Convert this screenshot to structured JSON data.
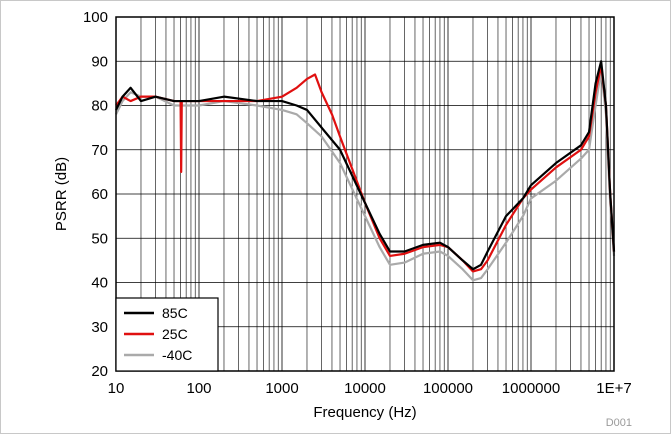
{
  "chart_data": {
    "type": "line",
    "title": "",
    "xlabel": "Frequency (Hz)",
    "ylabel": "PSRR (dB)",
    "x_scale": "log",
    "xlim": [
      10,
      10000000
    ],
    "ylim": [
      20,
      100
    ],
    "x_ticks": [
      {
        "value": 10,
        "label": "10"
      },
      {
        "value": 100,
        "label": "100"
      },
      {
        "value": 1000,
        "label": "1000"
      },
      {
        "value": 10000,
        "label": "10000"
      },
      {
        "value": 100000,
        "label": "100000"
      },
      {
        "value": 1000000,
        "label": "1000000"
      },
      {
        "value": 10000000,
        "label": "1E+7"
      }
    ],
    "y_ticks": [
      20,
      30,
      40,
      50,
      60,
      70,
      80,
      90,
      100
    ],
    "grid": true,
    "legend_position": "bottom-left",
    "figure_code": "D001",
    "series": [
      {
        "name": "85C",
        "color": "#000000",
        "points": [
          [
            10,
            79
          ],
          [
            12,
            82
          ],
          [
            15,
            84
          ],
          [
            20,
            81
          ],
          [
            30,
            82
          ],
          [
            50,
            81
          ],
          [
            60,
            81
          ],
          [
            100,
            81
          ],
          [
            200,
            82
          ],
          [
            500,
            81
          ],
          [
            1000,
            81
          ],
          [
            1500,
            80
          ],
          [
            2000,
            79
          ],
          [
            3000,
            75
          ],
          [
            5000,
            70
          ],
          [
            10000,
            58
          ],
          [
            15000,
            51
          ],
          [
            20000,
            47
          ],
          [
            30000,
            47
          ],
          [
            50000,
            48.5
          ],
          [
            80000,
            49
          ],
          [
            100000,
            48
          ],
          [
            150000,
            45
          ],
          [
            200000,
            43
          ],
          [
            250000,
            44
          ],
          [
            300000,
            47
          ],
          [
            500000,
            55
          ],
          [
            800000,
            59
          ],
          [
            1000000,
            62
          ],
          [
            2000000,
            67
          ],
          [
            4000000,
            71
          ],
          [
            5000000,
            74
          ],
          [
            6000000,
            85
          ],
          [
            7000000,
            90
          ],
          [
            8000000,
            80
          ],
          [
            9000000,
            60
          ],
          [
            10000000,
            47
          ]
        ]
      },
      {
        "name": "25C",
        "color": "#e01010",
        "points": [
          [
            10,
            80
          ],
          [
            12,
            82
          ],
          [
            15,
            81
          ],
          [
            20,
            82
          ],
          [
            30,
            82
          ],
          [
            50,
            81
          ],
          [
            60,
            81
          ],
          [
            61,
            65
          ],
          [
            62,
            81
          ],
          [
            100,
            81
          ],
          [
            200,
            81
          ],
          [
            500,
            81
          ],
          [
            1000,
            82
          ],
          [
            1500,
            84
          ],
          [
            2000,
            86
          ],
          [
            2500,
            87
          ],
          [
            3000,
            83
          ],
          [
            4000,
            78
          ],
          [
            5000,
            73
          ],
          [
            10000,
            58
          ],
          [
            15000,
            50
          ],
          [
            20000,
            46
          ],
          [
            30000,
            46.5
          ],
          [
            50000,
            48
          ],
          [
            80000,
            48.5
          ],
          [
            100000,
            48
          ],
          [
            150000,
            45
          ],
          [
            200000,
            42.5
          ],
          [
            250000,
            43
          ],
          [
            300000,
            45
          ],
          [
            500000,
            53
          ],
          [
            800000,
            59
          ],
          [
            1000000,
            61
          ],
          [
            2000000,
            66
          ],
          [
            4000000,
            70
          ],
          [
            5000000,
            73
          ],
          [
            6000000,
            83
          ],
          [
            7000000,
            89
          ],
          [
            8000000,
            80
          ],
          [
            9000000,
            60
          ],
          [
            10000000,
            47
          ]
        ]
      },
      {
        "name": "-40C",
        "color": "#aaaaaa",
        "points": [
          [
            10,
            78
          ],
          [
            12,
            81
          ],
          [
            15,
            83
          ],
          [
            20,
            82
          ],
          [
            30,
            82
          ],
          [
            50,
            80
          ],
          [
            60,
            80
          ],
          [
            100,
            80
          ],
          [
            200,
            81
          ],
          [
            500,
            80
          ],
          [
            1000,
            79
          ],
          [
            1500,
            78
          ],
          [
            2000,
            76
          ],
          [
            3000,
            73
          ],
          [
            5000,
            67
          ],
          [
            10000,
            55
          ],
          [
            15000,
            48
          ],
          [
            20000,
            44
          ],
          [
            30000,
            44.5
          ],
          [
            50000,
            46.5
          ],
          [
            80000,
            47
          ],
          [
            100000,
            46
          ],
          [
            150000,
            43
          ],
          [
            200000,
            40.5
          ],
          [
            250000,
            41
          ],
          [
            300000,
            43
          ],
          [
            500000,
            49
          ],
          [
            800000,
            55
          ],
          [
            1000000,
            59
          ],
          [
            2000000,
            63
          ],
          [
            4000000,
            68
          ],
          [
            5000000,
            70
          ],
          [
            6000000,
            80
          ],
          [
            7000000,
            88
          ],
          [
            8000000,
            78
          ],
          [
            9000000,
            58
          ],
          [
            10000000,
            46
          ]
        ]
      }
    ]
  }
}
